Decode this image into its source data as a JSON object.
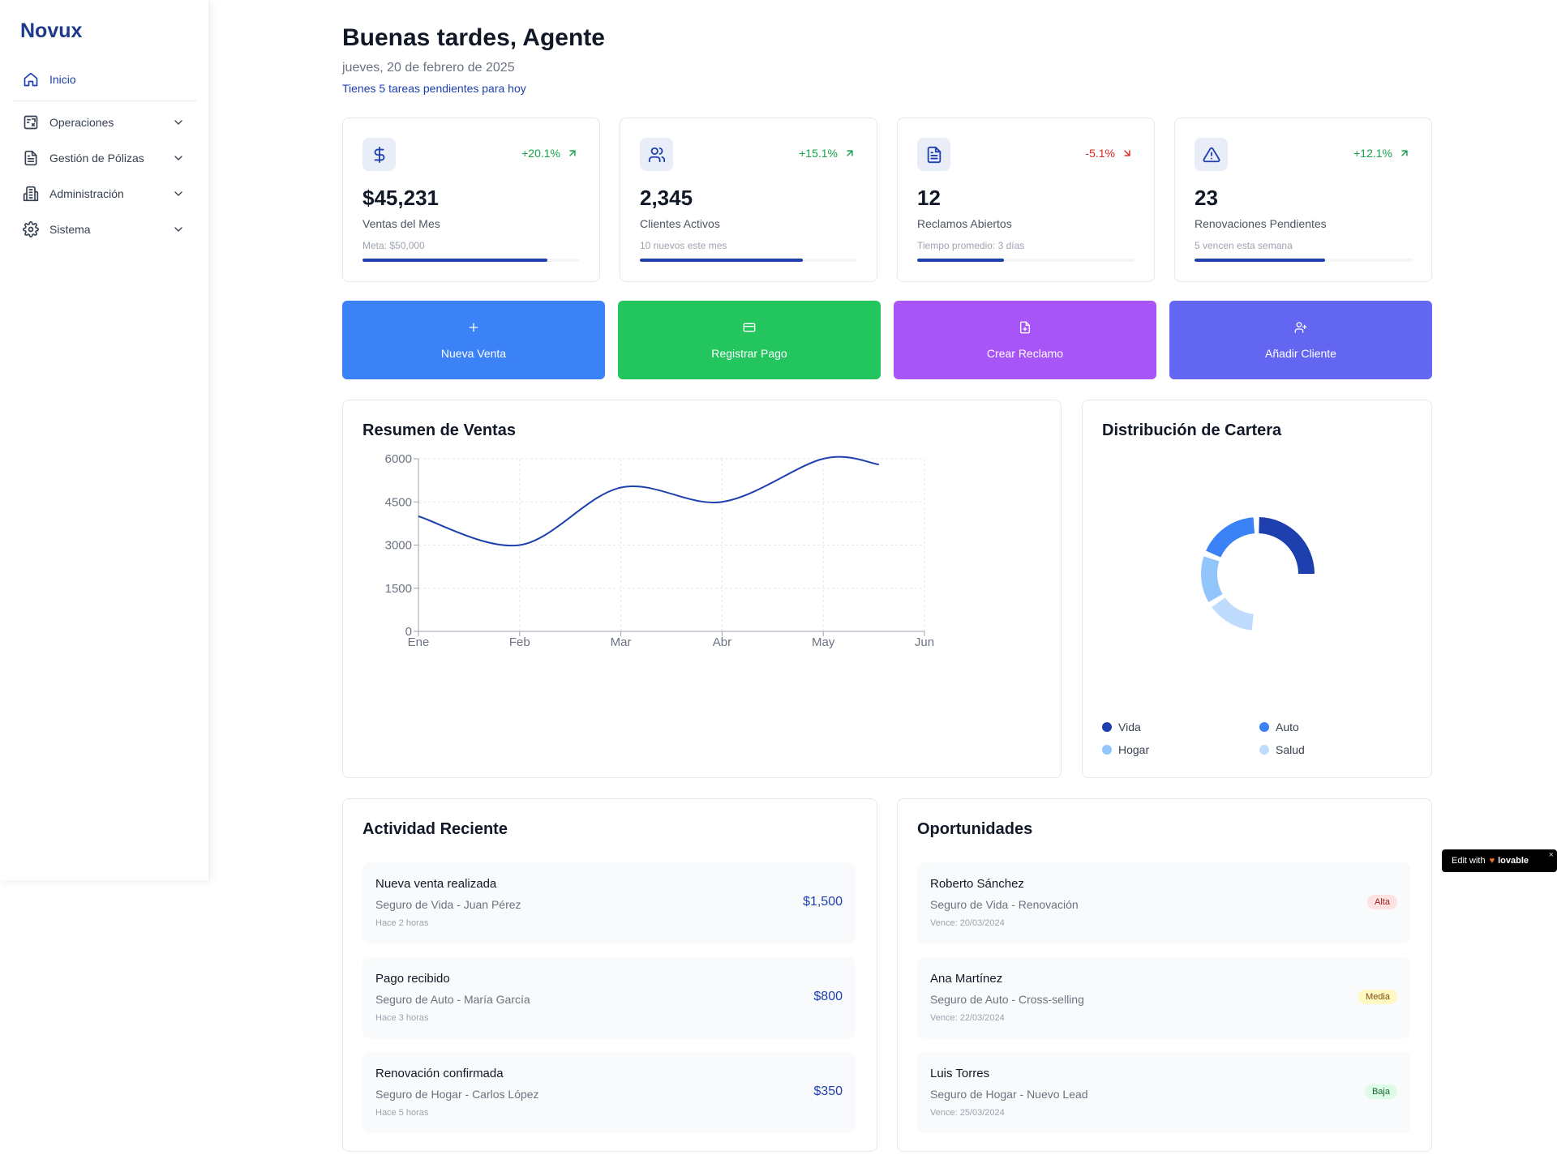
{
  "sidebar": {
    "brand": "Novux",
    "items": [
      {
        "label": "Inicio",
        "icon": "home-icon",
        "active": true
      },
      {
        "label": "Operaciones",
        "icon": "operations-icon"
      },
      {
        "label": "Gestión de Pólizas",
        "icon": "document-icon"
      },
      {
        "label": "Administración",
        "icon": "building-icon"
      },
      {
        "label": "Sistema",
        "icon": "gear-icon"
      }
    ]
  },
  "header": {
    "greeting": "Buenas tardes, Agente",
    "date": "jueves, 20 de febrero de 2025",
    "tasks": "Tienes 5 tareas pendientes para hoy"
  },
  "stats": [
    {
      "icon": "dollar-icon",
      "trend": "+20.1%",
      "trend_dir": "up",
      "value": "$45,231",
      "label": "Ventas del Mes",
      "sub": "Meta: $50,000",
      "progress": 0.85
    },
    {
      "icon": "users-icon",
      "trend": "+15.1%",
      "trend_dir": "up",
      "value": "2,345",
      "label": "Clientes Activos",
      "sub": "10 nuevos este mes",
      "progress": 0.75
    },
    {
      "icon": "file-text-icon",
      "trend": "-5.1%",
      "trend_dir": "down",
      "value": "12",
      "label": "Reclamos Abiertos",
      "sub": "Tiempo promedio: 3 días",
      "progress": 0.4
    },
    {
      "icon": "alert-triangle-icon",
      "trend": "+12.1%",
      "trend_dir": "up",
      "value": "23",
      "label": "Renovaciones Pendientes",
      "sub": "5 vencen esta semana",
      "progress": 0.6
    }
  ],
  "actions": [
    {
      "label": "Nueva Venta",
      "icon": "plus-icon",
      "color": "#3b82f6"
    },
    {
      "label": "Registrar Pago",
      "icon": "credit-card-icon",
      "color": "#22c55e"
    },
    {
      "label": "Crear Reclamo",
      "icon": "file-plus-icon",
      "color": "#a855f7"
    },
    {
      "label": "Añadir Cliente",
      "icon": "user-plus-icon",
      "color": "#6366f1"
    }
  ],
  "sales_panel": {
    "title": "Resumen de Ventas"
  },
  "portfolio_panel": {
    "title": "Distribución de Cartera"
  },
  "chart_data": [
    {
      "type": "line",
      "title": "Resumen de Ventas",
      "categories": [
        "Ene",
        "Feb",
        "Mar",
        "Abr",
        "May",
        "Jun"
      ],
      "values": [
        4000,
        3000,
        5000,
        4500,
        6000,
        5800
      ],
      "y_ticks": [
        "0",
        "1500",
        "3000",
        "4500",
        "6000"
      ],
      "ylim": [
        0,
        6000
      ],
      "grid": true,
      "color": "#1e40af"
    },
    {
      "type": "pie",
      "title": "Distribución de Cartera",
      "donut": true,
      "categories": [
        "Vida",
        "Auto",
        "Hogar",
        "Salud"
      ],
      "values": [
        35,
        25,
        20,
        20
      ],
      "colors": [
        "#1e40af",
        "#3b82f6",
        "#93c5fd",
        "#bfdbfe"
      ],
      "legend": "bottom"
    }
  ],
  "activity": {
    "title": "Actividad Reciente",
    "items": [
      {
        "title": "Nueva venta realizada",
        "subtitle": "Seguro de Vida - Juan Pérez",
        "time": "Hace 2 horas",
        "amount": "$1,500"
      },
      {
        "title": "Pago recibido",
        "subtitle": "Seguro de Auto - María García",
        "time": "Hace 3 horas",
        "amount": "$800"
      },
      {
        "title": "Renovación confirmada",
        "subtitle": "Seguro de Hogar - Carlos López",
        "time": "Hace 5 horas",
        "amount": "$350"
      }
    ]
  },
  "opportunities": {
    "title": "Oportunidades",
    "items": [
      {
        "title": "Roberto Sánchez",
        "subtitle": "Seguro de Vida - Renovación",
        "due": "Vence: 20/03/2024",
        "priority": "Alta",
        "level": "alta"
      },
      {
        "title": "Ana Martínez",
        "subtitle": "Seguro de Auto - Cross-selling",
        "due": "Vence: 22/03/2024",
        "priority": "Media",
        "level": "media"
      },
      {
        "title": "Luis Torres",
        "subtitle": "Seguro de Hogar - Nuevo Lead",
        "due": "Vence: 25/03/2024",
        "priority": "Baja",
        "level": "baja"
      }
    ]
  },
  "badge": {
    "prefix": "Edit with",
    "brand": "lovable",
    "close": "×"
  }
}
